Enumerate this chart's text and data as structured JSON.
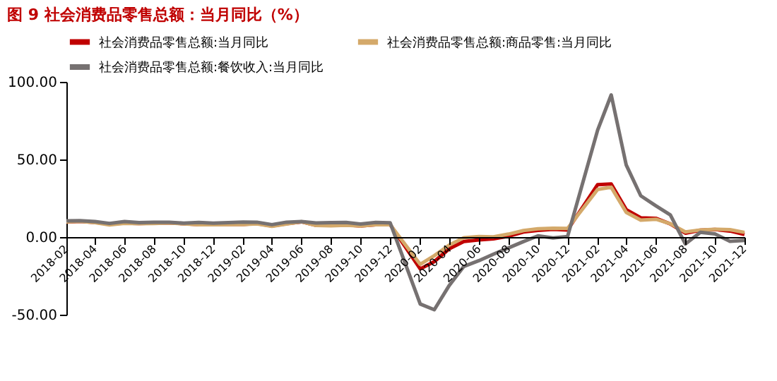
{
  "chart_data": {
    "type": "line",
    "title": "图 9 社会消费品零售总额：当月同比（%）",
    "x": [
      "2018-02",
      "2018-03",
      "2018-04",
      "2018-05",
      "2018-06",
      "2018-07",
      "2018-08",
      "2018-09",
      "2018-10",
      "2018-11",
      "2018-12",
      "2019-02",
      "2019-03",
      "2019-04",
      "2019-05",
      "2019-06",
      "2019-07",
      "2019-08",
      "2019-09",
      "2019-10",
      "2019-11",
      "2019-12",
      "2020-02",
      "2020-03",
      "2020-04",
      "2020-05",
      "2020-06",
      "2020-07",
      "2020-08",
      "2020-09",
      "2020-10",
      "2020-11",
      "2020-12",
      "2021-02",
      "2021-03",
      "2021-04",
      "2021-05",
      "2021-06",
      "2021-07",
      "2021-08",
      "2021-09",
      "2021-10",
      "2021-11",
      "2021-12"
    ],
    "series": [
      {
        "name": "社会消费品零售总额:当月同比",
        "color": "#c00000",
        "values": [
          9.7,
          10.1,
          9.4,
          8.5,
          9.0,
          8.8,
          9.0,
          9.2,
          8.6,
          8.1,
          8.2,
          8.2,
          8.7,
          7.2,
          8.6,
          9.8,
          7.6,
          7.5,
          7.8,
          7.2,
          8.0,
          8.0,
          -20.5,
          -15.8,
          -7.5,
          -2.8,
          -1.8,
          -1.1,
          0.5,
          3.3,
          4.3,
          5.0,
          4.6,
          33.8,
          34.2,
          17.7,
          12.4,
          12.1,
          8.5,
          2.5,
          4.4,
          4.9,
          3.9,
          1.7
        ]
      },
      {
        "name": "社会消费品零售总额:商品零售:当月同比",
        "color": "#d4a96a",
        "values": [
          9.8,
          10.1,
          9.3,
          7.8,
          8.9,
          8.6,
          8.8,
          9.1,
          8.5,
          7.9,
          8.0,
          8.1,
          8.5,
          6.9,
          8.4,
          9.9,
          7.5,
          7.3,
          7.6,
          7.1,
          7.9,
          8.0,
          -17.6,
          -12.0,
          -5.1,
          -0.4,
          0.3,
          0.1,
          1.9,
          4.2,
          5.3,
          5.7,
          5.6,
          30.7,
          32.1,
          15.9,
          10.9,
          11.5,
          8.6,
          3.3,
          4.6,
          5.0,
          4.8,
          3.0
        ]
      },
      {
        "name": "社会消费品零售总额:餐饮收入:当月同比",
        "color": "#767171",
        "values": [
          10.4,
          10.6,
          10.0,
          8.8,
          10.0,
          9.3,
          9.6,
          9.5,
          9.0,
          9.4,
          9.0,
          9.7,
          9.6,
          8.0,
          9.6,
          10.0,
          9.1,
          9.3,
          9.4,
          8.4,
          9.4,
          9.2,
          -43.1,
          -46.8,
          -31.1,
          -18.9,
          -15.2,
          -11.0,
          -7.0,
          -2.9,
          0.8,
          -0.6,
          0.4,
          68.9,
          91.6,
          46.4,
          26.6,
          20.2,
          14.3,
          -4.5,
          3.1,
          2.0,
          -2.7,
          -2.2
        ]
      }
    ],
    "xlim": [
      "2018-02",
      "2021-12"
    ],
    "xticks": [
      "2018-02",
      "2018-04",
      "2018-06",
      "2018-08",
      "2018-10",
      "2018-12",
      "2019-02",
      "2019-04",
      "2019-06",
      "2019-08",
      "2019-10",
      "2019-12",
      "2020-02",
      "2020-04",
      "2020-06",
      "2020-08",
      "2020-10",
      "2020-12",
      "2021-02",
      "2021-04",
      "2021-06",
      "2021-08",
      "2021-10",
      "2021-12"
    ],
    "ylim": [
      -50,
      100
    ],
    "yticks": [
      {
        "value": -50,
        "label": "-50.00"
      },
      {
        "value": 0,
        "label": "0.00"
      },
      {
        "value": 50,
        "label": "50.00"
      },
      {
        "value": 100,
        "label": "100.00"
      }
    ],
    "grid": false,
    "legend": "top",
    "line_style": "solid",
    "marker": "none"
  }
}
